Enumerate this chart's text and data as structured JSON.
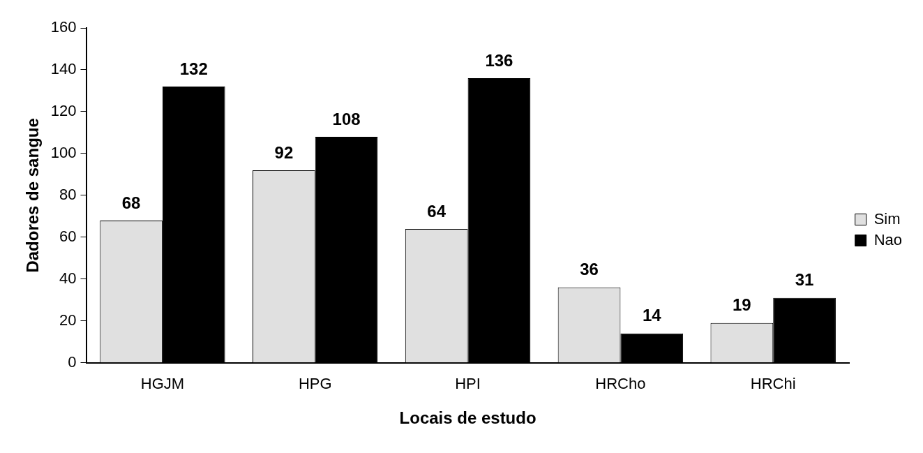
{
  "chart_data": {
    "type": "bar",
    "xlabel": "Locais de estudo",
    "ylabel": "Dadores de sangue",
    "categories": [
      "HGJM",
      "HPG",
      "HPI",
      "HRCho",
      "HRChi"
    ],
    "series": [
      {
        "name": "Sim",
        "color": "#e0e0e0",
        "values": [
          68,
          92,
          64,
          36,
          19
        ]
      },
      {
        "name": "Nao",
        "color": "#000000",
        "values": [
          132,
          108,
          136,
          14,
          31
        ]
      }
    ],
    "ylim": [
      0,
      160
    ],
    "yticks": [
      0,
      20,
      40,
      60,
      80,
      100,
      120,
      140,
      160
    ],
    "data_labels": true,
    "legend": "right",
    "grid": false
  }
}
